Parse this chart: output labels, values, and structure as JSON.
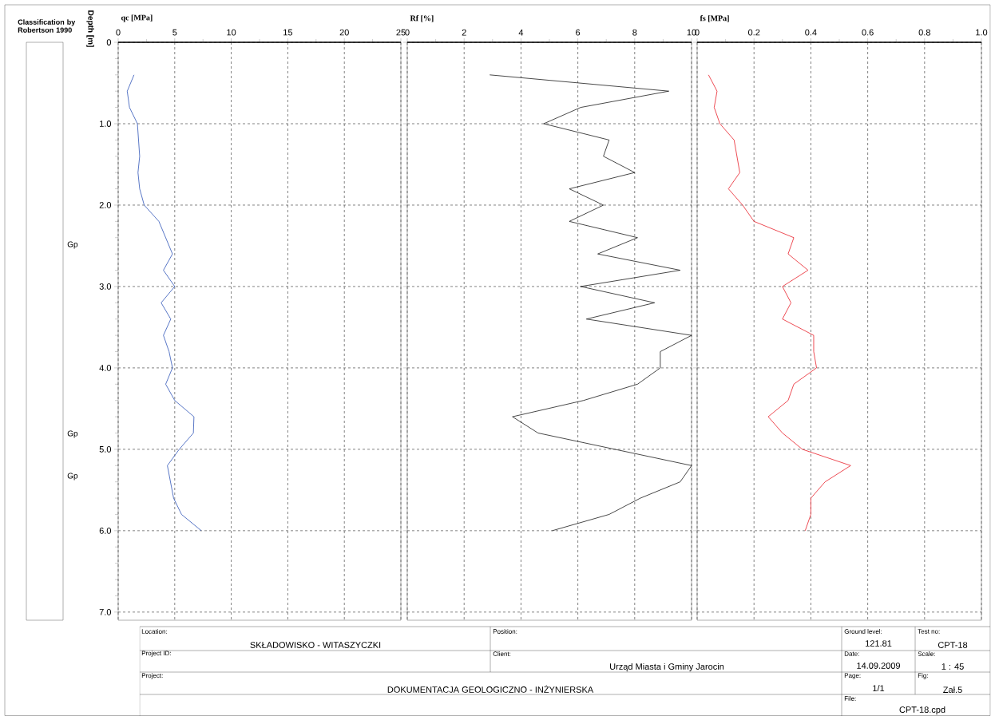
{
  "chart_data": [
    {
      "type": "line",
      "xlabel": "qc [MPa]",
      "ylabel": "Depth [m]",
      "xlim": [
        0,
        25
      ],
      "ylim": [
        7.1,
        0
      ],
      "xticks": [
        0,
        {
          "value": 2.5,
          "label": null
        },
        5,
        {
          "value": 7.5,
          "label": null
        },
        10,
        {
          "value": 12.5,
          "label": null
        },
        15,
        {
          "value": 17.5,
          "label": null
        },
        20,
        {
          "value": 22.5,
          "label": null
        },
        25
      ],
      "yticks": [
        0,
        {
          "value": 0.2,
          "label": null
        },
        {
          "value": 0.4,
          "label": null
        },
        {
          "value": 0.6,
          "label": null
        },
        {
          "value": 0.8,
          "label": null
        },
        {
          "value": 1,
          "label": "1.0"
        },
        {
          "value": 1.2,
          "label": null
        },
        {
          "value": 1.4,
          "label": null
        },
        {
          "value": 1.6,
          "label": null
        },
        {
          "value": 1.8,
          "label": null
        },
        {
          "value": 2,
          "label": "2.0"
        },
        {
          "value": 2.2,
          "label": null
        },
        {
          "value": 2.4,
          "label": null
        },
        {
          "value": 2.6,
          "label": null
        },
        {
          "value": 2.8,
          "label": null
        },
        {
          "value": 3,
          "label": "3.0"
        },
        {
          "value": 3.2,
          "label": null
        },
        {
          "value": 3.4,
          "label": null
        },
        {
          "value": 3.6,
          "label": null
        },
        {
          "value": 3.8,
          "label": null
        },
        {
          "value": 4,
          "label": "4.0"
        },
        {
          "value": 4.2,
          "label": null
        },
        {
          "value": 4.4,
          "label": null
        },
        {
          "value": 4.6,
          "label": null
        },
        {
          "value": 4.8,
          "label": null
        },
        {
          "value": 5,
          "label": "5.0"
        },
        {
          "value": 5.2,
          "label": null
        },
        {
          "value": 5.4,
          "label": null
        },
        {
          "value": 5.6,
          "label": null
        },
        {
          "value": 5.8,
          "label": null
        },
        {
          "value": 6,
          "label": "6.0"
        },
        {
          "value": 6.2,
          "label": null
        },
        {
          "value": 6.4,
          "label": null
        },
        {
          "value": 6.6,
          "label": null
        },
        {
          "value": 6.8,
          "label": null
        },
        {
          "value": 7,
          "label": "7.0"
        }
      ],
      "grid": true,
      "series": [
        {
          "color": "#2e54b8",
          "x": [
            1.4,
            0.8,
            1.0,
            1.7,
            1.9,
            1.75,
            1.9,
            2.3,
            3.6,
            4.8,
            4.0,
            5.0,
            3.8,
            4.65,
            4.0,
            4.5,
            4.8,
            4.2,
            5.0,
            6.7,
            6.65,
            5.4,
            4.35,
            4.9,
            5.6,
            7.35
          ],
          "values": [
            0.4,
            0.6,
            0.8,
            1.0,
            1.4,
            1.6,
            1.8,
            2.0,
            2.2,
            2.6,
            2.8,
            3.0,
            3.2,
            3.4,
            3.6,
            3.8,
            4.0,
            4.2,
            4.4,
            4.6,
            4.8,
            5.0,
            5.2,
            5.6,
            5.8,
            6.0
          ]
        }
      ],
      "annotations": [
        "Classification by Robertson 1990",
        "Gp",
        "Gp",
        "Gp",
        "Location:",
        "SKŁADOWISKO - WITASZYCZKI",
        "Position:",
        "Ground level:",
        "121.81",
        "Test no:",
        "CPT-18",
        "Project ID:",
        "Client:",
        "Urząd Miasta i Gminy Jarocin",
        "Date:",
        "14.09.2009",
        "Scale:",
        "1 : 45",
        "Project:",
        "DOKUMENTACJA GEOLOGICZNO - INŻYNIERSKA",
        "Page:",
        "1/1",
        "Fig:",
        "Zał.5",
        "File:",
        "CPT-18.cpd"
      ]
    },
    {
      "type": "line",
      "xlabel": "Rf [%]",
      "xlim": [
        0,
        10
      ],
      "ylim": [
        7.1,
        0
      ],
      "tick_labels": "x",
      "xticks": [
        0,
        {
          "value": 1,
          "label": null
        },
        2,
        {
          "value": 3,
          "label": null
        },
        4,
        {
          "value": 5,
          "label": null
        },
        6,
        {
          "value": 7,
          "label": null
        },
        8,
        {
          "value": 9,
          "label": null
        },
        10
      ],
      "yticks": [
        0,
        1,
        2,
        3,
        4,
        5,
        6,
        7
      ],
      "grid": true,
      "series": [
        {
          "color": "#1a1a1a",
          "x": [
            2.9,
            9.2,
            6.1,
            4.8,
            7.1,
            6.9,
            8.0,
            5.7,
            6.9,
            5.7,
            8.1,
            6.7,
            9.6,
            6.1,
            8.7,
            6.3,
            10.0,
            8.9,
            8.9,
            8.1,
            6.2,
            3.7,
            4.6,
            10.0,
            9.6,
            8.2,
            7.1,
            5.1
          ],
          "values": [
            0.4,
            0.6,
            0.8,
            1.0,
            1.2,
            1.4,
            1.6,
            1.8,
            2.0,
            2.2,
            2.4,
            2.6,
            2.8,
            3.0,
            3.2,
            3.4,
            3.6,
            3.8,
            4.0,
            4.2,
            4.4,
            4.6,
            4.8,
            5.2,
            5.4,
            5.6,
            5.8,
            6.0
          ]
        }
      ]
    },
    {
      "type": "line",
      "xlabel": "fs [MPa]",
      "xlim": [
        0,
        1
      ],
      "ylim": [
        7.1,
        0
      ],
      "tick_labels": "x",
      "xticks": [
        0,
        {
          "value": 0.1,
          "label": null
        },
        0.2,
        {
          "value": 0.3,
          "label": null
        },
        0.4,
        {
          "value": 0.5,
          "label": null
        },
        0.6,
        {
          "value": 0.7,
          "label": null
        },
        0.8,
        {
          "value": 0.9,
          "label": null
        },
        {
          "value": 1,
          "label": "1.0"
        }
      ],
      "yticks": [
        0,
        1,
        2,
        3,
        4,
        5,
        6,
        7
      ],
      "grid": true,
      "series": [
        {
          "color": "#e8202a",
          "x": [
            0.04,
            0.07,
            0.06,
            0.08,
            0.13,
            0.15,
            0.11,
            0.16,
            0.2,
            0.34,
            0.32,
            0.39,
            0.3,
            0.33,
            0.3,
            0.41,
            0.41,
            0.42,
            0.34,
            0.32,
            0.25,
            0.3,
            0.37,
            0.54,
            0.45,
            0.4,
            0.4,
            0.38
          ],
          "values": [
            0.4,
            0.6,
            0.8,
            1.0,
            1.2,
            1.6,
            1.8,
            2.0,
            2.2,
            2.4,
            2.6,
            2.8,
            3.0,
            3.2,
            3.4,
            3.6,
            3.8,
            4.0,
            4.2,
            4.4,
            4.6,
            4.8,
            5.0,
            5.2,
            5.4,
            5.6,
            5.8,
            6.0
          ]
        }
      ]
    }
  ]
}
